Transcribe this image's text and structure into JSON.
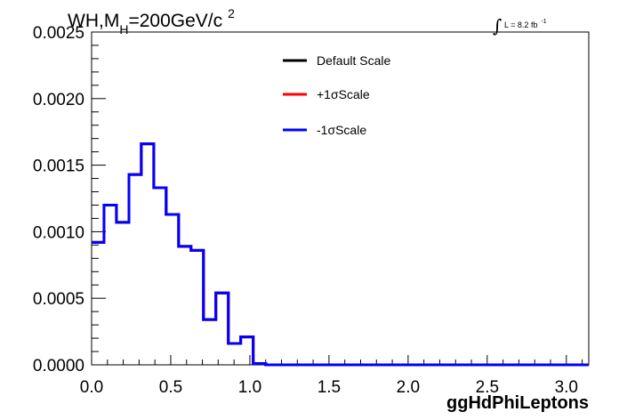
{
  "chart_data": {
    "type": "line",
    "style": "step-histogram",
    "title": {
      "prefix": "WH,M",
      "subscript": "H",
      "main": "=200GeV/c",
      "superscript": "2"
    },
    "luminosity": {
      "integral": "∫",
      "text": "L = 8.2 fb",
      "exponent": "-1"
    },
    "xlabel": "ggHdPhiLeptons",
    "ylabel": "",
    "xlim": [
      0,
      3.1416
    ],
    "ylim": [
      0,
      0.0025
    ],
    "x_ticks": [
      "0.0",
      "0.5",
      "1.0",
      "1.5",
      "2.0",
      "2.5",
      "3.0"
    ],
    "x_tick_values": [
      0,
      0.5,
      1.0,
      1.5,
      2.0,
      2.5,
      3.0
    ],
    "y_ticks": [
      "0.0000",
      "0.0005",
      "0.0010",
      "0.0015",
      "0.0020",
      "0.0025"
    ],
    "y_tick_values": [
      0,
      0.0005,
      0.001,
      0.0015,
      0.002,
      0.0025
    ],
    "bin_edges": [
      0,
      0.0785,
      0.157,
      0.236,
      0.314,
      0.393,
      0.471,
      0.55,
      0.628,
      0.707,
      0.785,
      0.864,
      0.942,
      1.021,
      1.1,
      1.178,
      1.257,
      1.335,
      1.414,
      1.492,
      1.571,
      1.649,
      1.728,
      1.806,
      1.885,
      1.963,
      2.042,
      2.121,
      2.199,
      2.278,
      2.356,
      2.435,
      2.513,
      2.592,
      2.67,
      2.749,
      2.827,
      2.906,
      2.985,
      3.063,
      3.1416
    ],
    "series": [
      {
        "name": "Default Scale",
        "color": "#000000",
        "values": [
          0.00092,
          0.0012,
          0.00107,
          0.00143,
          0.00166,
          0.00133,
          0.00113,
          0.00089,
          0.00086,
          0.00034,
          0.00054,
          0.00016,
          0.00021,
          1e-05,
          0,
          0,
          0,
          0,
          0,
          0,
          0,
          0,
          0,
          0,
          0,
          0,
          0,
          0,
          0,
          0,
          0,
          0,
          0,
          0,
          0,
          0,
          0,
          0,
          0,
          0
        ]
      },
      {
        "name": "+1σScale",
        "color": "#ff0000",
        "values": [
          0.00092,
          0.0012,
          0.00107,
          0.00143,
          0.00166,
          0.00133,
          0.00113,
          0.00089,
          0.00086,
          0.00034,
          0.00054,
          0.00016,
          0.00021,
          1e-05,
          0,
          0,
          0,
          0,
          0,
          0,
          0,
          0,
          0,
          0,
          0,
          0,
          0,
          0,
          0,
          0,
          0,
          0,
          0,
          0,
          0,
          0,
          0,
          0,
          0,
          0
        ]
      },
      {
        "name": "-1σScale",
        "color": "#0000ff",
        "values": [
          0.00092,
          0.0012,
          0.00107,
          0.00143,
          0.00166,
          0.00133,
          0.00113,
          0.00089,
          0.00086,
          0.00034,
          0.00054,
          0.00016,
          0.00021,
          1e-05,
          0,
          0,
          0,
          0,
          0,
          0,
          0,
          0,
          0,
          0,
          0,
          0,
          0,
          0,
          0,
          0,
          0,
          0,
          0,
          0,
          0,
          0,
          0,
          0,
          0,
          0
        ]
      }
    ],
    "legend": {
      "placement": "top-right",
      "entries": [
        "Default Scale",
        "+1σScale",
        "-1σScale"
      ]
    },
    "grid": false
  }
}
